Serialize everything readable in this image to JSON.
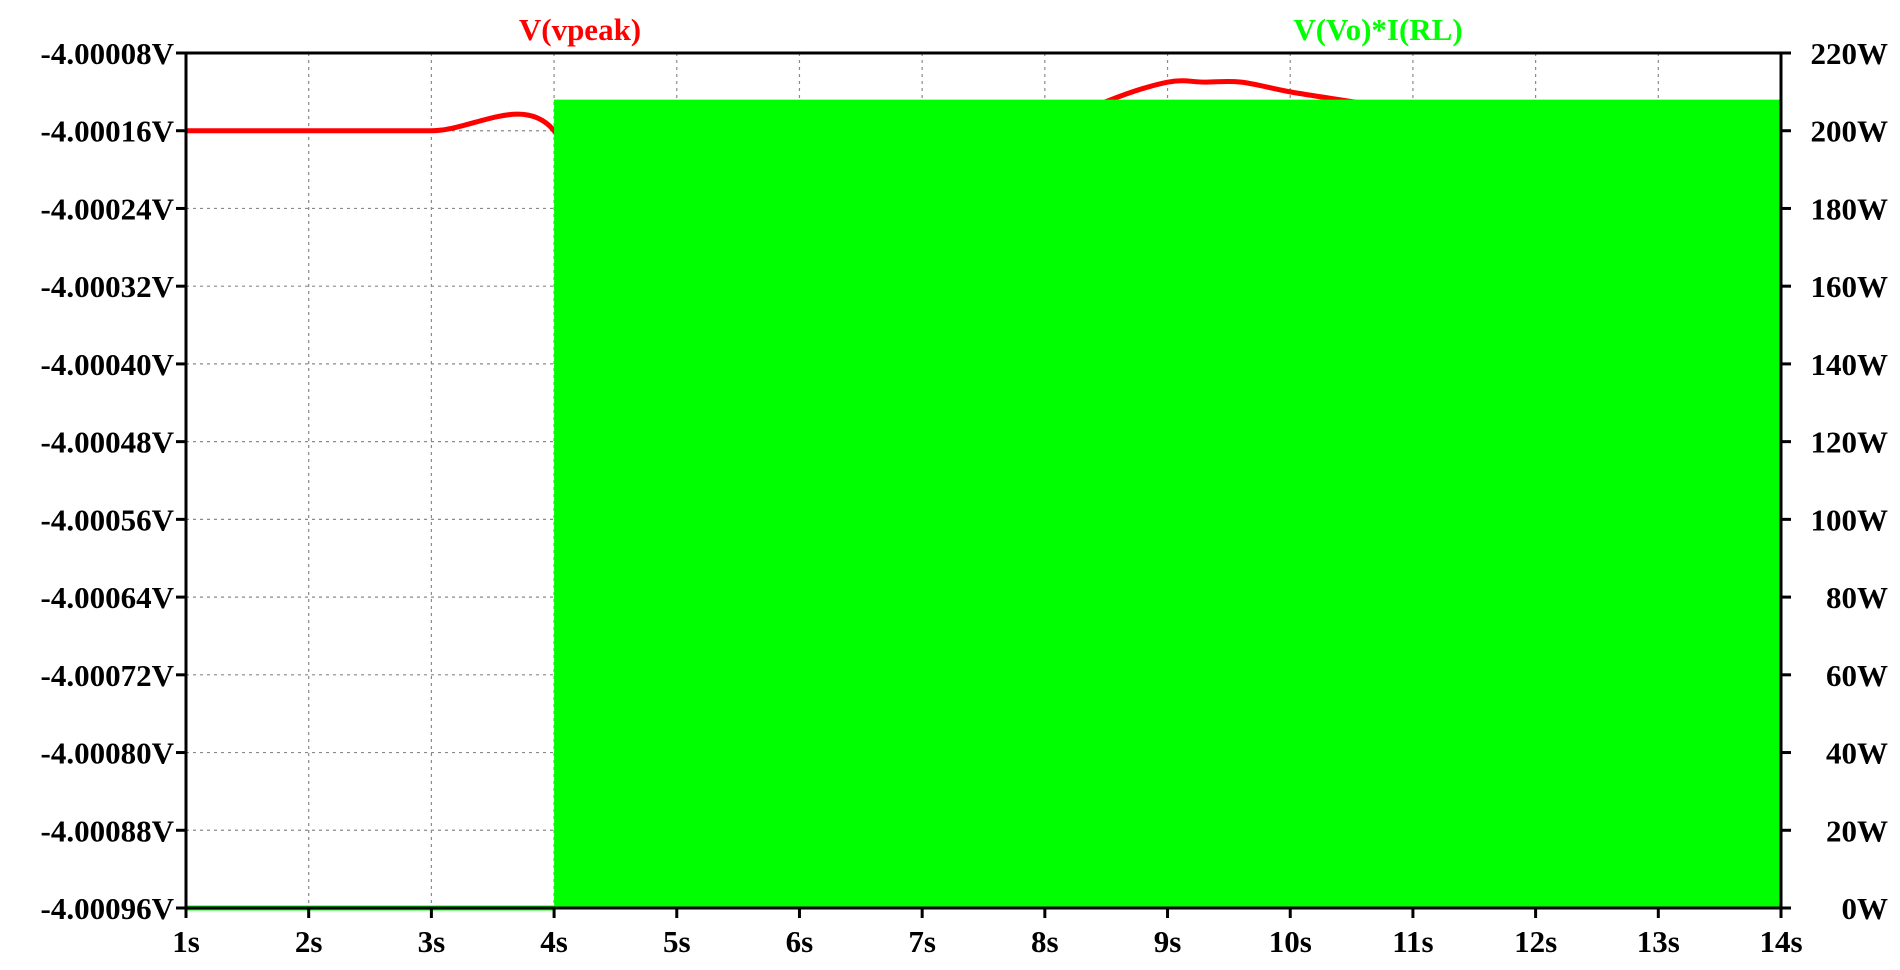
{
  "chart_data": {
    "type": "line",
    "title": "",
    "xlabel": "",
    "grid": true,
    "x": {
      "min": 1,
      "max": 14,
      "ticks": [
        1,
        2,
        3,
        4,
        5,
        6,
        7,
        8,
        9,
        10,
        11,
        12,
        13,
        14
      ],
      "tick_labels": [
        "1s",
        "2s",
        "3s",
        "4s",
        "5s",
        "6s",
        "7s",
        "8s",
        "9s",
        "10s",
        "11s",
        "12s",
        "13s",
        "14s"
      ]
    },
    "y_left": {
      "min": -4.00096,
      "max": -4.00008,
      "ticks": [
        -4.00008,
        -4.00016,
        -4.00024,
        -4.00032,
        -4.0004,
        -4.00048,
        -4.00056,
        -4.00064,
        -4.00072,
        -4.0008,
        -4.00088,
        -4.00096
      ],
      "tick_labels": [
        "-4.00008V",
        "-4.00016V",
        "-4.00024V",
        "-4.00032V",
        "-4.00040V",
        "-4.00048V",
        "-4.00056V",
        "-4.00064V",
        "-4.00072V",
        "-4.00080V",
        "-4.00088V",
        "-4.00096V"
      ]
    },
    "y_right": {
      "min": 0,
      "max": 220,
      "ticks": [
        220,
        200,
        180,
        160,
        140,
        120,
        100,
        80,
        60,
        40,
        20,
        0
      ],
      "tick_labels": [
        "220W",
        "200W",
        "180W",
        "160W",
        "140W",
        "120W",
        "100W",
        "80W",
        "60W",
        "40W",
        "20W",
        "0W"
      ]
    },
    "series": [
      {
        "name": "V(vpeak)",
        "axis": "left",
        "color": "#ff0000",
        "x": [
          1,
          2,
          3,
          4,
          4.5,
          5,
          5.5,
          5.8,
          6,
          6.5,
          7,
          7.5,
          8,
          8.5,
          9,
          9.3,
          9.6,
          10,
          10.5,
          11,
          11.5,
          12,
          12.5,
          13,
          13.5,
          14
        ],
        "y": [
          -4.00016,
          -4.00016,
          -4.00016,
          -4.00016,
          -4.00039,
          -4.00063,
          -4.00084,
          -4.0009,
          -4.00087,
          -4.00068,
          -4.00043,
          -4.00025,
          -4.00016,
          -4.00013,
          -4.00011,
          -4.00011,
          -4.00011,
          -4.00012,
          -4.00013,
          -4.00014,
          -4.00015,
          -4.00016,
          -4.00016,
          -4.00016,
          -4.00015,
          -4.00015
        ]
      },
      {
        "name": "V(Vo)*I(RL)",
        "axis": "right",
        "color": "#00ff00",
        "x": [
          1,
          4,
          4,
          14
        ],
        "y": [
          0,
          0,
          208,
          208
        ],
        "fill_to_zero_from_x": 4,
        "lower_envelope": 0
      }
    ]
  }
}
